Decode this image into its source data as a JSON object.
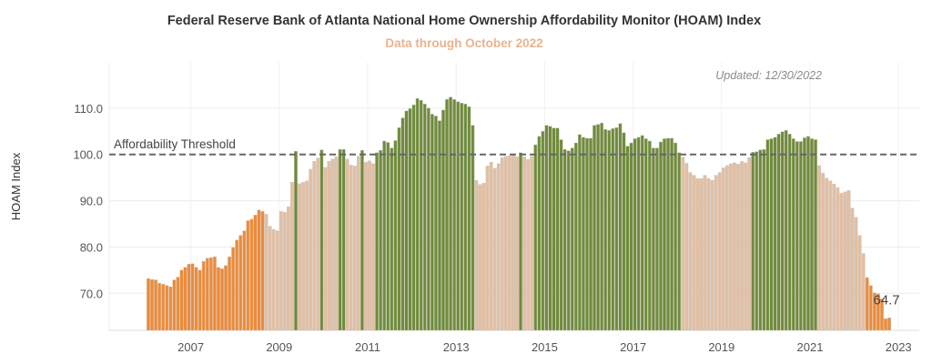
{
  "chart_data": {
    "type": "bar",
    "title": "Federal Reserve Bank of Atlanta National Home Ownership Affordability Monitor (HOAM) Index",
    "subtitle": "Data through October 2022",
    "updated": "Updated: 12/30/2022",
    "ylabel": "HOAM Index",
    "xlabel": "",
    "ylim": [
      62,
      120
    ],
    "yticks": [
      "70.0",
      "80.0",
      "90.0",
      "100.0",
      "110.0"
    ],
    "ytick_values": [
      70,
      80,
      90,
      100,
      110
    ],
    "xticks": [
      "2007",
      "2009",
      "2011",
      "2013",
      "2015",
      "2017",
      "2019",
      "2021",
      "2023"
    ],
    "x_start": "2006-01",
    "x_end": "2022-10",
    "frequency": "monthly",
    "threshold": {
      "value": 100,
      "label": "Affordability Threshold"
    },
    "last_value_label": "64.7",
    "grid": true,
    "colors": {
      "above_threshold": "#6e8c3a",
      "below_threshold": "#e3bfa3",
      "highlight": "#f08a35",
      "threshold_line": "#666666",
      "subtitle": "#e8b48f"
    },
    "values": [
      73.2,
      73.0,
      72.9,
      72.2,
      72.0,
      71.7,
      71.4,
      72.9,
      73.5,
      75.0,
      75.6,
      76.3,
      76.4,
      75.6,
      75.0,
      76.9,
      77.6,
      77.7,
      77.9,
      75.6,
      75.3,
      76.0,
      77.9,
      79.9,
      81.5,
      82.5,
      83.5,
      85.7,
      86.0,
      86.9,
      88.0,
      87.7,
      87.1,
      84.5,
      83.8,
      83.5,
      87.7,
      87.5,
      88.7,
      94.0,
      100.7,
      93.7,
      94.0,
      94.3,
      96.8,
      98.5,
      99.2,
      101.0,
      97.2,
      98.5,
      99.0,
      99.5,
      101.1,
      101.1,
      99.0,
      97.7,
      97.5,
      99.6,
      100.9,
      98.3,
      98.6,
      98.0,
      100.4,
      100.9,
      102.9,
      102.6,
      101.4,
      103.0,
      105.8,
      107.9,
      109.4,
      109.9,
      110.7,
      112.1,
      111.7,
      110.9,
      110.0,
      108.7,
      108.3,
      107.3,
      109.6,
      111.9,
      112.4,
      111.9,
      111.4,
      111.1,
      110.9,
      110.3,
      106.3,
      94.4,
      93.5,
      93.8,
      97.5,
      98.3,
      97.0,
      98.0,
      99.3,
      99.6,
      99.7,
      99.8,
      99.5,
      100.4,
      99.5,
      98.9,
      99.6,
      102.1,
      103.9,
      105.0,
      106.3,
      106.1,
      105.7,
      105.7,
      103.2,
      101.1,
      100.8,
      101.4,
      102.5,
      104.3,
      103.7,
      103.5,
      103.5,
      106.3,
      106.5,
      106.8,
      105.4,
      105.2,
      105.6,
      105.8,
      106.7,
      104.7,
      101.8,
      102.5,
      103.4,
      103.7,
      104.1,
      103.4,
      102.9,
      101.4,
      101.4,
      102.7,
      103.4,
      103.5,
      103.5,
      102.5,
      100.4,
      99.4,
      98.1,
      96.1,
      95.5,
      94.8,
      94.8,
      95.5,
      94.8,
      94.4,
      95.5,
      96.1,
      97.1,
      97.6,
      98.0,
      98.2,
      97.9,
      98.5,
      98.2,
      99.3,
      100.5,
      100.6,
      101.0,
      101.1,
      103.2,
      103.4,
      103.7,
      104.4,
      104.9,
      105.2,
      104.4,
      103.4,
      102.8,
      102.8,
      103.6,
      103.9,
      103.4,
      103.2,
      97.6,
      96.0,
      94.9,
      94.3,
      93.6,
      92.8,
      91.6,
      91.9,
      92.2,
      88.4,
      86.4,
      82.5,
      78.6,
      73.4,
      71.7,
      70.1,
      69.9,
      68.8,
      64.5,
      64.7
    ]
  }
}
